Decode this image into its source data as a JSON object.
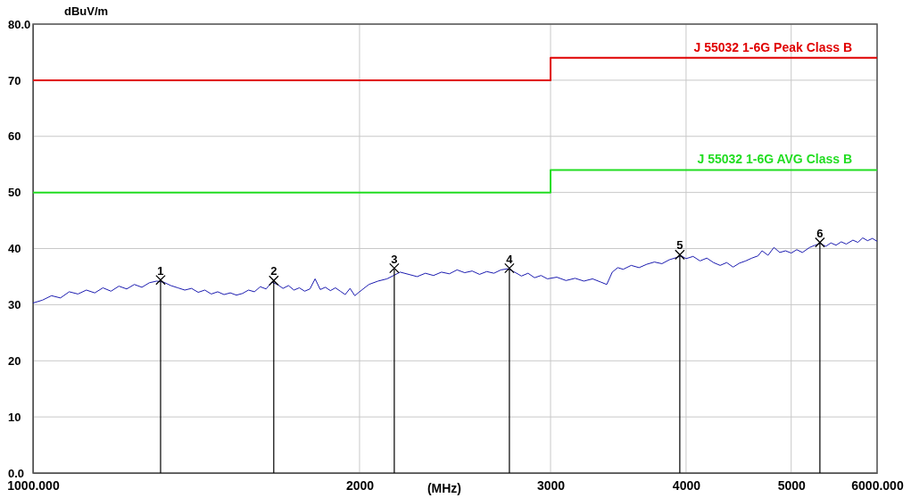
{
  "chart_data": {
    "type": "line",
    "xlabel": "(MHz)",
    "ylabel": "dBuV/m",
    "log": "x",
    "grid": true,
    "xlim": [
      1000,
      6000
    ],
    "xticks": [
      {
        "value": 1000,
        "label": "1000.000"
      },
      2000,
      3000,
      4000,
      5000,
      {
        "value": 6000,
        "label": "6000.000"
      }
    ],
    "ylim": [
      0,
      80
    ],
    "yticks": [
      {
        "value": 0,
        "label": "0.0"
      },
      10,
      20,
      30,
      40,
      50,
      60,
      70,
      {
        "value": 80,
        "label": "80.0"
      }
    ],
    "series": [
      {
        "name": "J 55032 1-6G Peak Class B",
        "type": "step",
        "color": "#e00000",
        "x": [
          1000,
          3000,
          6000
        ],
        "values": [
          70,
          74,
          74
        ]
      },
      {
        "name": "J 55032 1-6G AVG Class B",
        "type": "step",
        "color": "#22dd22",
        "x": [
          1000,
          3000,
          6000
        ],
        "values": [
          50,
          54,
          54
        ]
      },
      {
        "color": "#1c1cb0",
        "x": [
          1000,
          1020,
          1040,
          1060,
          1080,
          1100,
          1120,
          1140,
          1160,
          1180,
          1200,
          1220,
          1240,
          1260,
          1280,
          1300,
          1320,
          1340,
          1360,
          1380,
          1400,
          1420,
          1440,
          1460,
          1480,
          1500,
          1520,
          1540,
          1560,
          1580,
          1600,
          1620,
          1640,
          1660,
          1680,
          1700,
          1720,
          1740,
          1760,
          1780,
          1800,
          1820,
          1840,
          1860,
          1880,
          1900,
          1920,
          1940,
          1960,
          1980,
          2000,
          2040,
          2080,
          2120,
          2150,
          2180,
          2220,
          2260,
          2300,
          2340,
          2380,
          2420,
          2460,
          2500,
          2540,
          2580,
          2620,
          2660,
          2700,
          2740,
          2780,
          2820,
          2860,
          2900,
          2940,
          2980,
          3040,
          3100,
          3160,
          3220,
          3280,
          3340,
          3380,
          3420,
          3460,
          3500,
          3560,
          3620,
          3680,
          3740,
          3800,
          3860,
          3920,
          3960,
          4000,
          4060,
          4120,
          4180,
          4240,
          4300,
          4360,
          4420,
          4480,
          4540,
          4600,
          4660,
          4700,
          4760,
          4820,
          4880,
          4940,
          5000,
          5060,
          5120,
          5200,
          5260,
          5320,
          5380,
          5440,
          5500,
          5560,
          5620,
          5700,
          5760,
          5820,
          5880,
          5940,
          6000
        ],
        "values": [
          30.3,
          30.8,
          31.6,
          31.2,
          32.3,
          31.9,
          32.6,
          32.1,
          33.0,
          32.4,
          33.3,
          32.8,
          33.6,
          33.1,
          33.9,
          34.2,
          34.0,
          33.4,
          33.0,
          32.6,
          32.9,
          32.2,
          32.6,
          31.9,
          32.3,
          31.8,
          32.1,
          31.7,
          32.0,
          32.6,
          32.3,
          33.2,
          32.8,
          34.0,
          33.6,
          32.9,
          33.4,
          32.6,
          33.0,
          32.4,
          32.8,
          34.6,
          32.7,
          33.1,
          32.5,
          33.0,
          32.4,
          31.8,
          32.9,
          31.6,
          32.3,
          33.6,
          34.2,
          34.6,
          35.2,
          35.8,
          35.4,
          35.0,
          35.6,
          35.2,
          35.8,
          35.5,
          36.2,
          35.7,
          36.0,
          35.4,
          35.9,
          35.6,
          36.2,
          36.4,
          35.8,
          35.1,
          35.6,
          34.8,
          35.2,
          34.6,
          34.9,
          34.3,
          34.7,
          34.2,
          34.6,
          34.0,
          33.6,
          35.8,
          36.6,
          36.3,
          37.0,
          36.6,
          37.2,
          37.6,
          37.3,
          38.0,
          38.4,
          38.7,
          38.2,
          38.6,
          37.8,
          38.3,
          37.5,
          37.0,
          37.5,
          36.7,
          37.4,
          37.8,
          38.3,
          38.7,
          39.6,
          38.8,
          40.2,
          39.3,
          39.6,
          39.2,
          39.8,
          39.3,
          40.2,
          40.6,
          40.9,
          40.4,
          41.0,
          40.6,
          41.2,
          40.8,
          41.5,
          41.1,
          41.9,
          41.4,
          41.8,
          41.3
        ]
      },
      {
        "type": "lollipop",
        "color": "#000000",
        "marker": "cross",
        "x": [
          1311,
          1667,
          2153,
          2749,
          3947,
          5314
        ],
        "values": [
          34.4,
          34.3,
          36.5,
          36.5,
          38.9,
          41.1
        ]
      }
    ],
    "annotations": [
      {
        "text": "1",
        "x": 1311,
        "y": 34.4
      },
      {
        "text": "2",
        "x": 1667,
        "y": 34.3
      },
      {
        "text": "3",
        "x": 2153,
        "y": 36.5
      },
      {
        "text": "4",
        "x": 2749,
        "y": 36.5
      },
      {
        "text": "5",
        "x": 3947,
        "y": 38.9
      },
      {
        "text": "6",
        "x": 5314,
        "y": 41.1
      }
    ]
  }
}
